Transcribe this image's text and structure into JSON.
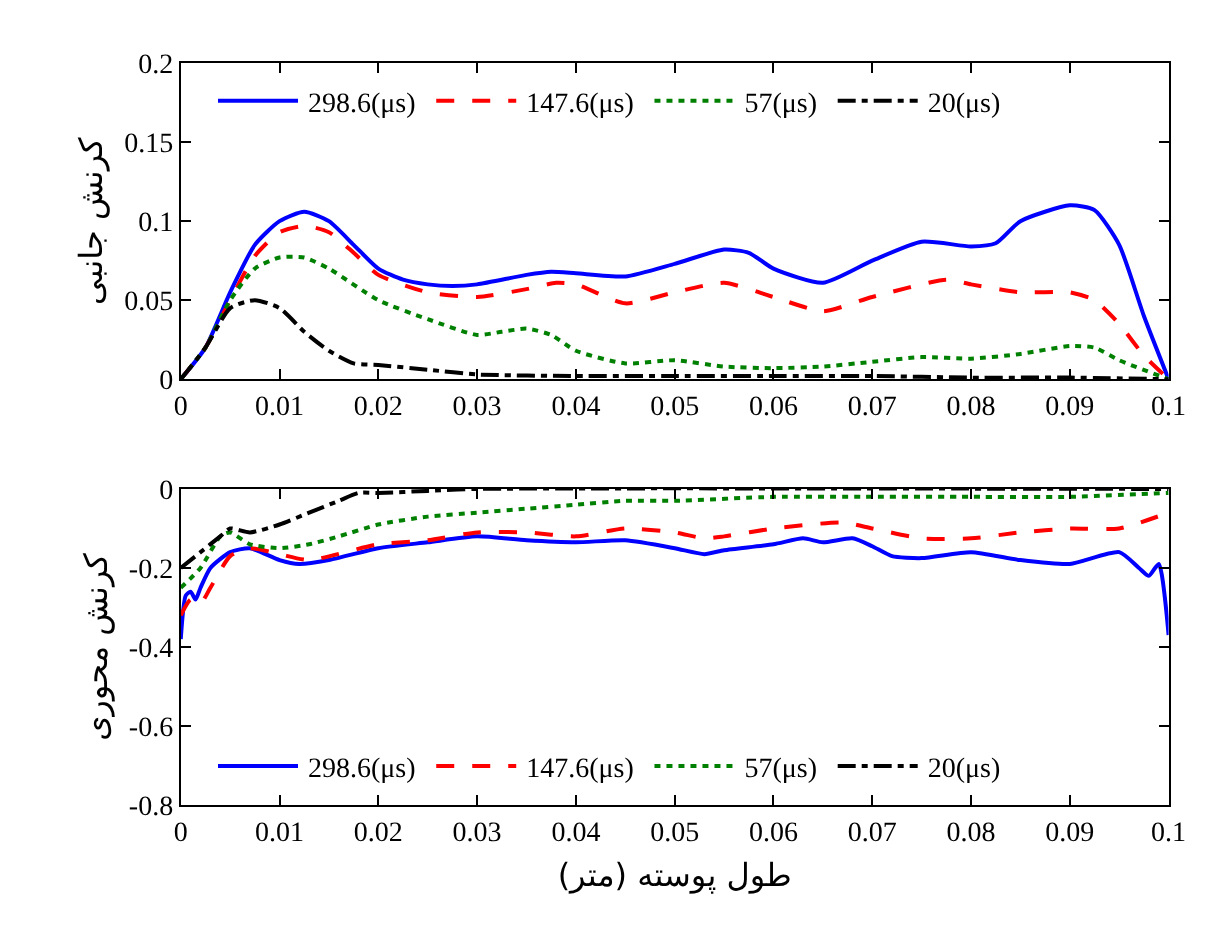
{
  "chart_data": [
    {
      "type": "line",
      "ylabel": "کرنش جانبی",
      "xlim": [
        0,
        0.1
      ],
      "ylim": [
        0,
        0.2
      ],
      "xticks": [
        0,
        0.01,
        0.02,
        0.03,
        0.04,
        0.05,
        0.06,
        0.07,
        0.08,
        0.09,
        0.1
      ],
      "yticks": [
        0,
        0.05,
        0.1,
        0.15,
        0.2
      ],
      "legend": "top",
      "marker": "none",
      "series": [
        {
          "name": "298.6(μs)",
          "color": "#0000ff",
          "line_style": "solid",
          "x": [
            0,
            0.0025,
            0.005,
            0.0075,
            0.01,
            0.0125,
            0.015,
            0.0175,
            0.02,
            0.0225,
            0.025,
            0.0275,
            0.03,
            0.035,
            0.0375,
            0.04,
            0.045,
            0.05,
            0.055,
            0.0575,
            0.06,
            0.065,
            0.07,
            0.075,
            0.08,
            0.0825,
            0.085,
            0.09,
            0.0925,
            0.095,
            0.0975,
            0.1
          ],
          "values": [
            0,
            0.02,
            0.055,
            0.085,
            0.1,
            0.106,
            0.1,
            0.085,
            0.07,
            0.063,
            0.06,
            0.059,
            0.06,
            0.066,
            0.068,
            0.067,
            0.065,
            0.073,
            0.082,
            0.08,
            0.07,
            0.061,
            0.075,
            0.087,
            0.084,
            0.086,
            0.1,
            0.11,
            0.107,
            0.085,
            0.04,
            0
          ]
        },
        {
          "name": "147.6(μs)",
          "color": "#ff0000",
          "line_style": "dashed",
          "x": [
            0,
            0.0025,
            0.005,
            0.0075,
            0.01,
            0.0125,
            0.015,
            0.0175,
            0.02,
            0.025,
            0.03,
            0.035,
            0.038,
            0.04,
            0.045,
            0.05,
            0.055,
            0.06,
            0.065,
            0.07,
            0.0775,
            0.08,
            0.085,
            0.09,
            0.0925,
            0.095,
            0.0975,
            0.1
          ],
          "values": [
            0,
            0.02,
            0.05,
            0.078,
            0.093,
            0.097,
            0.093,
            0.08,
            0.066,
            0.055,
            0.052,
            0.057,
            0.061,
            0.06,
            0.048,
            0.055,
            0.061,
            0.052,
            0.043,
            0.052,
            0.063,
            0.06,
            0.055,
            0.055,
            0.05,
            0.035,
            0.015,
            0
          ]
        },
        {
          "name": "57(μs)",
          "color": "#008000",
          "line_style": "dotted",
          "x": [
            0,
            0.0025,
            0.005,
            0.0075,
            0.01,
            0.0125,
            0.015,
            0.02,
            0.025,
            0.03,
            0.0325,
            0.035,
            0.0375,
            0.04,
            0.045,
            0.05,
            0.055,
            0.06,
            0.065,
            0.07,
            0.075,
            0.08,
            0.085,
            0.09,
            0.0925,
            0.095,
            0.1
          ],
          "values": [
            0,
            0.02,
            0.05,
            0.07,
            0.077,
            0.077,
            0.07,
            0.05,
            0.038,
            0.028,
            0.03,
            0.032,
            0.028,
            0.018,
            0.01,
            0.012,
            0.008,
            0.007,
            0.008,
            0.011,
            0.014,
            0.013,
            0.016,
            0.021,
            0.02,
            0.012,
            0
          ]
        },
        {
          "name": "20(μs)",
          "color": "#000000",
          "line_style": "dashdot",
          "x": [
            0,
            0.0025,
            0.005,
            0.0075,
            0.01,
            0.0125,
            0.015,
            0.0175,
            0.02,
            0.025,
            0.03,
            0.04,
            0.05,
            0.06,
            0.07,
            0.08,
            0.09,
            0.1
          ],
          "values": [
            0,
            0.02,
            0.045,
            0.05,
            0.045,
            0.03,
            0.018,
            0.01,
            0.009,
            0.006,
            0.003,
            0.002,
            0.002,
            0.002,
            0.002,
            0.001,
            0.001,
            0
          ]
        }
      ]
    },
    {
      "type": "line",
      "ylabel": "کرنش محوری",
      "xlabel": "طول پوسته (متر)",
      "xlim": [
        0,
        0.1
      ],
      "ylim": [
        -0.8,
        0
      ],
      "xticks": [
        0,
        0.01,
        0.02,
        0.03,
        0.04,
        0.05,
        0.06,
        0.07,
        0.08,
        0.09,
        0.1
      ],
      "yticks": [
        -0.8,
        -0.6,
        -0.4,
        -0.2,
        0
      ],
      "legend": "bottom",
      "marker": "none",
      "series": [
        {
          "name": "298.6(μs)",
          "color": "#0000ff",
          "line_style": "solid",
          "x": [
            0,
            0.0005,
            0.001,
            0.0015,
            0.002,
            0.003,
            0.005,
            0.007,
            0.01,
            0.012,
            0.015,
            0.02,
            0.025,
            0.03,
            0.035,
            0.04,
            0.045,
            0.05,
            0.053,
            0.055,
            0.06,
            0.063,
            0.065,
            0.068,
            0.07,
            0.072,
            0.075,
            0.08,
            0.085,
            0.09,
            0.095,
            0.097,
            0.098,
            0.099,
            0.1
          ],
          "values": [
            -0.38,
            -0.27,
            -0.26,
            -0.28,
            -0.25,
            -0.2,
            -0.16,
            -0.15,
            -0.18,
            -0.19,
            -0.18,
            -0.15,
            -0.135,
            -0.12,
            -0.13,
            -0.135,
            -0.13,
            -0.15,
            -0.165,
            -0.155,
            -0.14,
            -0.125,
            -0.135,
            -0.125,
            -0.145,
            -0.17,
            -0.175,
            -0.16,
            -0.18,
            -0.19,
            -0.16,
            -0.2,
            -0.22,
            -0.19,
            -0.37
          ]
        },
        {
          "name": "147.6(μs)",
          "color": "#ff0000",
          "line_style": "dashed",
          "x": [
            0,
            0.001,
            0.002,
            0.003,
            0.005,
            0.007,
            0.01,
            0.013,
            0.02,
            0.025,
            0.03,
            0.035,
            0.04,
            0.045,
            0.05,
            0.053,
            0.055,
            0.06,
            0.067,
            0.07,
            0.075,
            0.08,
            0.085,
            0.09,
            0.095,
            0.1
          ],
          "values": [
            -0.32,
            -0.28,
            -0.29,
            -0.25,
            -0.17,
            -0.15,
            -0.165,
            -0.18,
            -0.14,
            -0.13,
            -0.11,
            -0.11,
            -0.12,
            -0.1,
            -0.11,
            -0.125,
            -0.12,
            -0.1,
            -0.085,
            -0.1,
            -0.125,
            -0.125,
            -0.11,
            -0.1,
            -0.1,
            -0.06
          ]
        },
        {
          "name": "57(μs)",
          "color": "#008000",
          "line_style": "dotted",
          "x": [
            0,
            0.002,
            0.004,
            0.005,
            0.007,
            0.01,
            0.013,
            0.016,
            0.02,
            0.025,
            0.03,
            0.035,
            0.04,
            0.045,
            0.05,
            0.06,
            0.07,
            0.08,
            0.09,
            0.1
          ],
          "values": [
            -0.25,
            -0.2,
            -0.12,
            -0.11,
            -0.14,
            -0.15,
            -0.14,
            -0.12,
            -0.09,
            -0.07,
            -0.06,
            -0.05,
            -0.04,
            -0.03,
            -0.03,
            -0.02,
            -0.02,
            -0.02,
            -0.02,
            -0.01
          ]
        },
        {
          "name": "20(μs)",
          "color": "#000000",
          "line_style": "dashdot",
          "x": [
            0,
            0.002,
            0.004,
            0.005,
            0.007,
            0.01,
            0.013,
            0.016,
            0.018,
            0.02,
            0.025,
            0.03,
            0.1
          ],
          "values": [
            -0.2,
            -0.16,
            -0.12,
            -0.1,
            -0.11,
            -0.09,
            -0.06,
            -0.03,
            -0.01,
            -0.01,
            -0.005,
            0,
            0
          ]
        }
      ]
    }
  ]
}
